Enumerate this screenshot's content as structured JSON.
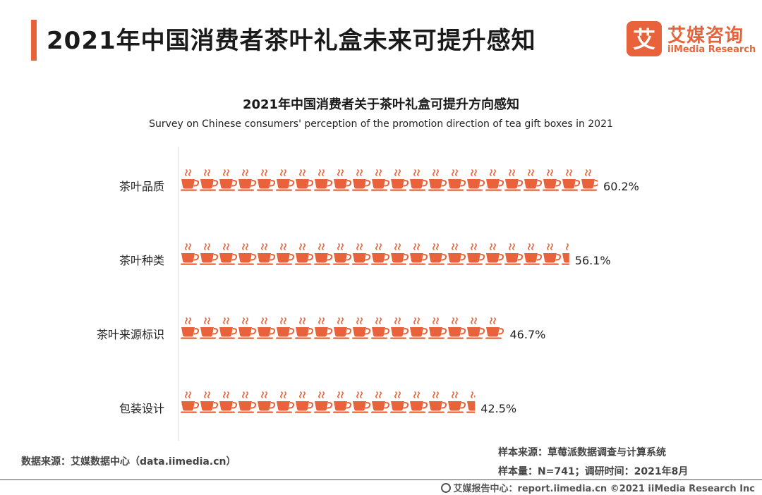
{
  "header": {
    "title": "2021年中国消费者茶叶礼盒未来可提升感知",
    "logo_mark_char": "艾",
    "logo_cn": "艾媒咨询",
    "logo_en": "iiMedia Research"
  },
  "chart_data": {
    "type": "bar",
    "title": "2021年中国消费者关于茶叶礼盒可提升方向感知",
    "subtitle": "Survey on Chinese consumers' perception of the promotion direction of tea gift boxes in 2021",
    "categories": [
      "茶叶品质",
      "茶叶种类",
      "茶叶来源标识",
      "包装设计"
    ],
    "values": [
      60.2,
      56.1,
      46.7,
      42.5
    ],
    "value_labels": [
      "60.2%",
      "56.1%",
      "46.7%",
      "42.5%"
    ],
    "unit": "%",
    "percent_per_icon": 2.75,
    "icon": "tea-cup-icon",
    "color": "#e8633b"
  },
  "source": {
    "left": "数据来源：艾媒数据中心（data.iimedia.cn）",
    "sample_source": "样本来源：草莓派数据调查与计算系统",
    "sample_size": "样本量：N=741；调研时间：2021年8月"
  },
  "footer": {
    "text": "艾媒报告中心：report.iimedia.cn  ©2021  iiMedia Research  Inc"
  }
}
